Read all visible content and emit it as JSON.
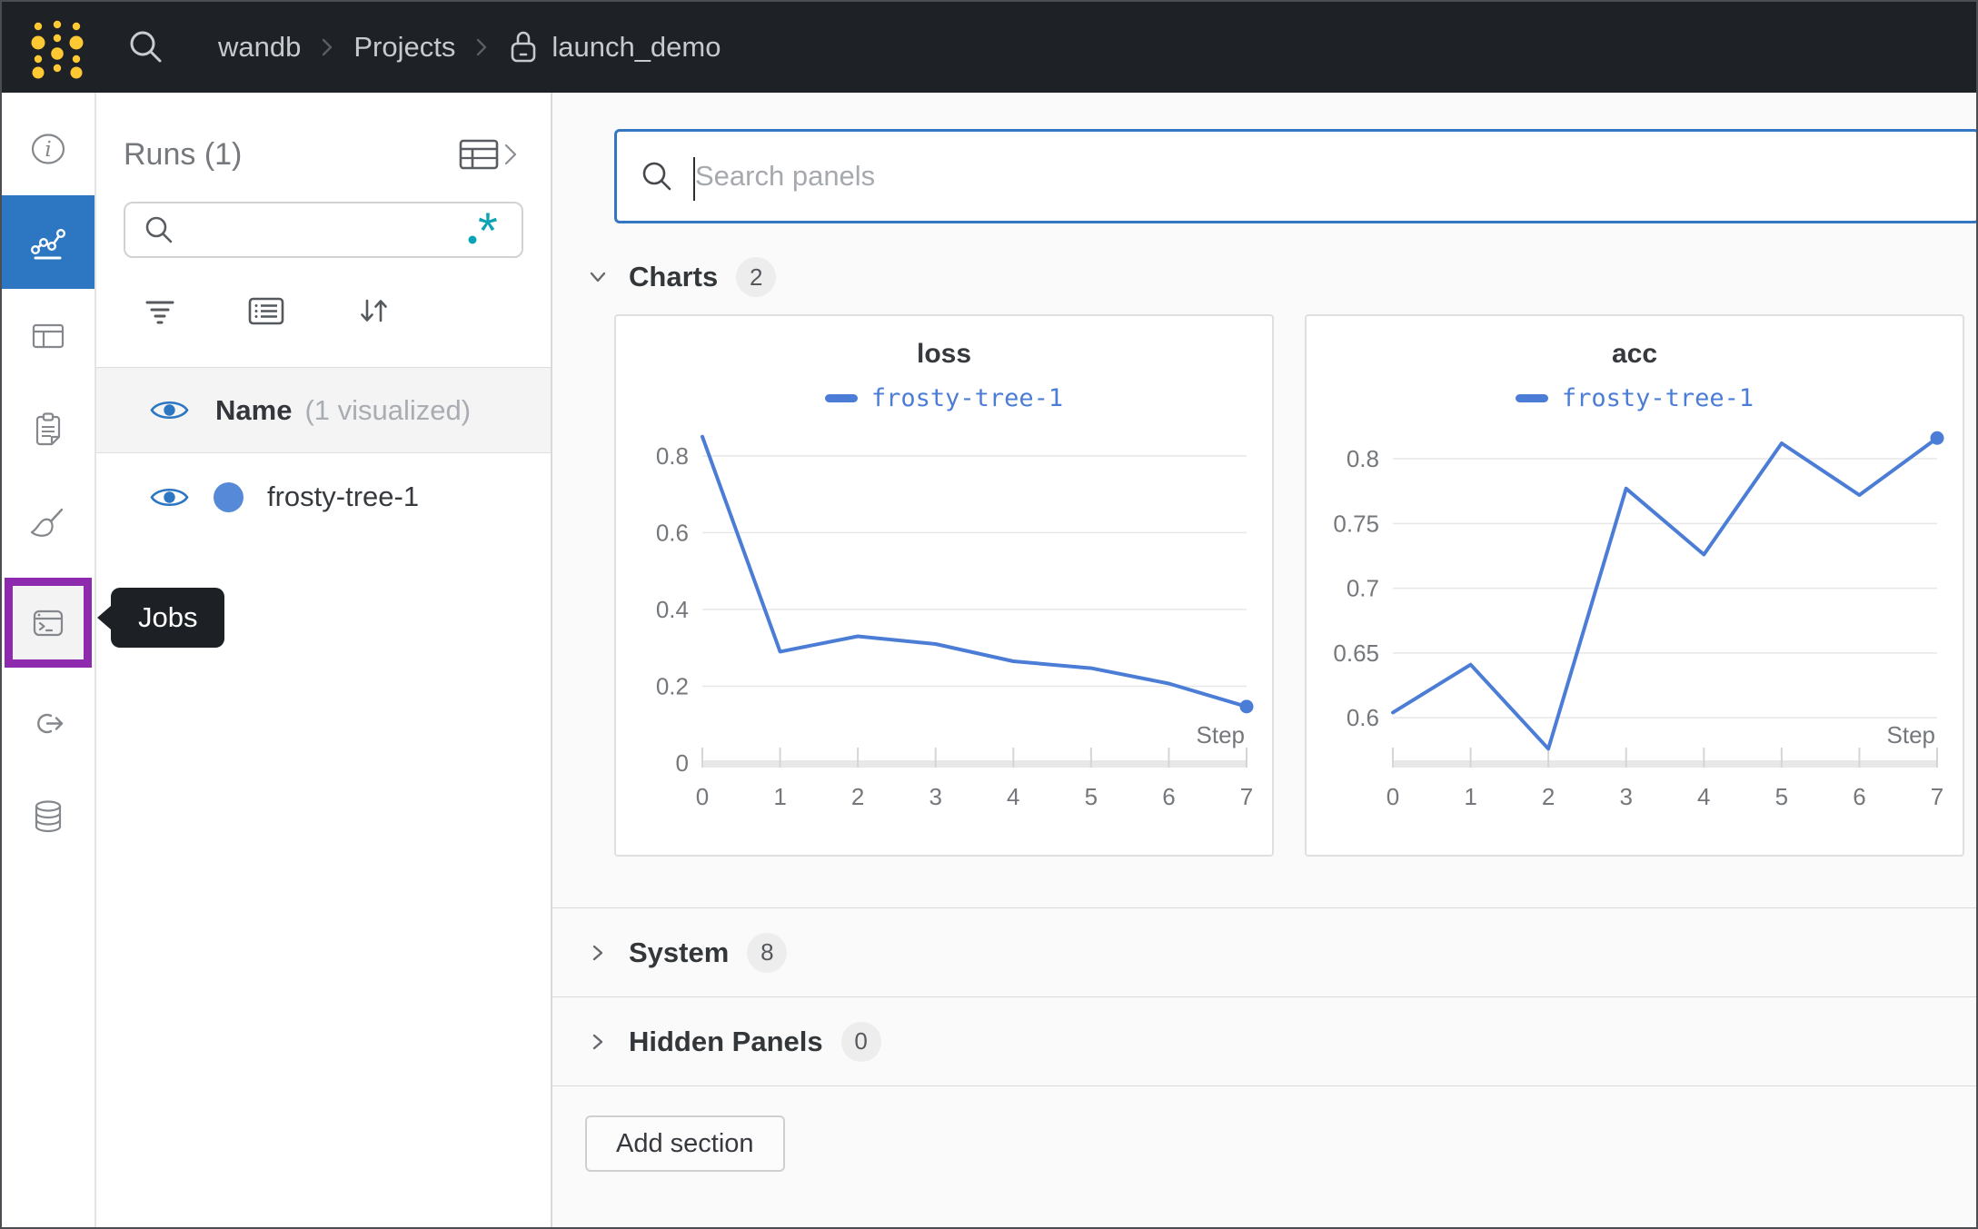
{
  "topbar": {
    "breadcrumb": [
      {
        "label": "wandb"
      },
      {
        "label": "Projects"
      },
      {
        "label": "launch_demo",
        "locked": true
      }
    ]
  },
  "sidebar": {
    "items": [
      {
        "icon": "info-icon"
      },
      {
        "icon": "line-chart-icon",
        "active": true
      },
      {
        "icon": "table-icon"
      },
      {
        "icon": "clipboard-icon"
      },
      {
        "icon": "broom-icon"
      },
      {
        "icon": "terminal-icon",
        "highlighted": true
      },
      {
        "icon": "link-arrow-icon"
      },
      {
        "icon": "database-icon"
      }
    ],
    "tooltip_label": "Jobs"
  },
  "runs_panel": {
    "title": "Runs (1)",
    "search_value": "",
    "header_row": {
      "label": "Name",
      "sublabel": "(1 visualized)"
    },
    "runs": [
      {
        "name": "frosty-tree-1",
        "dot_color": "#568ad8",
        "visible": true
      }
    ]
  },
  "main": {
    "search": {
      "placeholder": "Search panels",
      "value": ""
    },
    "sections": [
      {
        "label": "Charts",
        "count": "2",
        "expanded": true
      },
      {
        "label": "System",
        "count": "8",
        "expanded": false
      },
      {
        "label": "Hidden Panels",
        "count": "0",
        "expanded": false
      }
    ],
    "add_section_label": "Add section"
  },
  "chart_data": [
    {
      "type": "line",
      "title": "loss",
      "xlabel": "Step",
      "x": [
        0,
        1,
        2,
        3,
        4,
        5,
        6,
        7
      ],
      "series": [
        {
          "name": "frosty-tree-1",
          "color": "#4c7dd6",
          "values": [
            0.85,
            0.29,
            0.33,
            0.31,
            0.265,
            0.247,
            0.207,
            0.147
          ]
        }
      ],
      "xticks": [
        0,
        1,
        2,
        3,
        4,
        5,
        6,
        7
      ],
      "yticks": [
        0,
        0.2,
        0.4,
        0.6,
        0.8
      ],
      "xlim": [
        0,
        7
      ],
      "ylim": [
        0,
        0.88
      ],
      "grid": true,
      "legend_position": "top",
      "end_marker": true
    },
    {
      "type": "line",
      "title": "acc",
      "xlabel": "Step",
      "x": [
        0,
        1,
        2,
        3,
        4,
        5,
        6,
        7
      ],
      "series": [
        {
          "name": "frosty-tree-1",
          "color": "#4c7dd6",
          "values": [
            0.604,
            0.641,
            0.576,
            0.777,
            0.726,
            0.812,
            0.772,
            0.816
          ]
        }
      ],
      "xticks": [
        0,
        1,
        2,
        3,
        4,
        5,
        6,
        7
      ],
      "yticks": [
        0.6,
        0.65,
        0.7,
        0.75,
        0.8
      ],
      "xlim": [
        0,
        7
      ],
      "ylim": [
        0.565,
        0.826
      ],
      "grid": true,
      "legend_position": "top",
      "end_marker": true
    }
  ],
  "colors": {
    "topbar_bg": "#1e2226",
    "logo_yellow": "#ffc933",
    "accent_blue": "#2d77c2",
    "chart_line_blue": "#4c7dd6",
    "purple_highlight": "#8e2aad",
    "regex_teal": "#0ba3b5",
    "main_bg": "#fafafa"
  }
}
